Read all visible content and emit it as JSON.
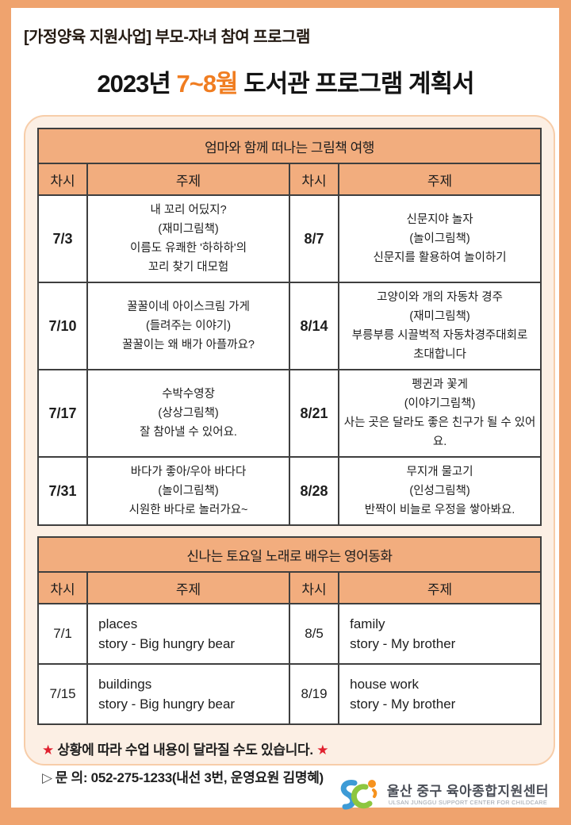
{
  "header": {
    "tag": "[가정양육 지원사업] 부모-자녀 참여 프로그램",
    "title_prefix": "2023년 ",
    "title_highlight": "7~8월",
    "title_suffix": " 도서관 프로그램 계획서"
  },
  "picture_book_table": {
    "title": "엄마와 함께 떠나는 그림책 여행",
    "columns": [
      "차시",
      "주제",
      "차시",
      "주제"
    ],
    "rows": [
      {
        "left": {
          "date": "7/3",
          "lines": [
            "내 꼬리 어딨지?",
            "(재미그림책)",
            "이름도 유쾌한 '하하하'의",
            "꼬리 찾기 대모험"
          ]
        },
        "right": {
          "date": "8/7",
          "lines": [
            "신문지야 놀자",
            "(놀이그림책)",
            "신문지를 활용하여 놀이하기"
          ]
        }
      },
      {
        "left": {
          "date": "7/10",
          "lines": [
            "꿀꿀이네 아이스크림 가게",
            "(들려주는 이야기)",
            "꿀꿀이는 왜 배가 아플까요?"
          ]
        },
        "right": {
          "date": "8/14",
          "lines": [
            "고양이와 개의 자동차 경주",
            "(재미그림책)",
            "부릉부릉 시끌벅적 자동차경주대회로",
            "초대합니다"
          ]
        }
      },
      {
        "left": {
          "date": "7/17",
          "lines": [
            "수박수영장",
            "(상상그림책)",
            "잘 참아낼 수 있어요."
          ]
        },
        "right": {
          "date": "8/21",
          "lines": [
            "펭귄과 꽃게",
            "(이야기그림책)",
            "사는 곳은 달라도 좋은 친구가 될 수 있어요."
          ]
        }
      },
      {
        "left": {
          "date": "7/31",
          "lines": [
            "바다가 좋아/우아 바다다",
            "(놀이그림책)",
            "시원한 바다로 놀러가요~"
          ]
        },
        "right": {
          "date": "8/28",
          "lines": [
            "무지개 물고기",
            "(인성그림책)",
            "반짝이 비늘로 우정을 쌓아봐요."
          ]
        }
      }
    ]
  },
  "english_table": {
    "title": "신나는 토요일 노래로 배우는 영어동화",
    "columns": [
      "차시",
      "주제",
      "차시",
      "주제"
    ],
    "rows": [
      {
        "left": {
          "date": "7/1",
          "lines": [
            "places",
            "story - Big hungry bear"
          ]
        },
        "right": {
          "date": "8/5",
          "lines": [
            "family",
            "story - My brother"
          ]
        }
      },
      {
        "left": {
          "date": "7/15",
          "lines": [
            "buildings",
            "story - Big hungry bear"
          ]
        },
        "right": {
          "date": "8/19",
          "lines": [
            "house work",
            "story - My brother"
          ]
        }
      }
    ]
  },
  "notes": {
    "star": "★",
    "notice": "상황에 따라 수업 내용이 달라질 수도 있습니다.",
    "contact_marker": "▷",
    "contact": "문 의: 052-275-1233(내선 3번, 운영요원 김명혜)"
  },
  "logo": {
    "name_ko": "울산 중구 육아종합지원센터",
    "name_en": "ULSAN JUNGGU SUPPORT CENTER FOR CHILDCARE"
  },
  "colors": {
    "frame": "#EFA36E",
    "panel_bg": "#FCEFE4",
    "panel_border": "#F7CDA9",
    "table_header_bg": "#F2AD7E",
    "table_border": "#3F3F3F",
    "title_highlight": "#F07D21",
    "star_red": "#E0202E",
    "logo_blue": "#3D9BD6",
    "logo_green": "#8DC63F",
    "logo_orange": "#F6921E"
  }
}
